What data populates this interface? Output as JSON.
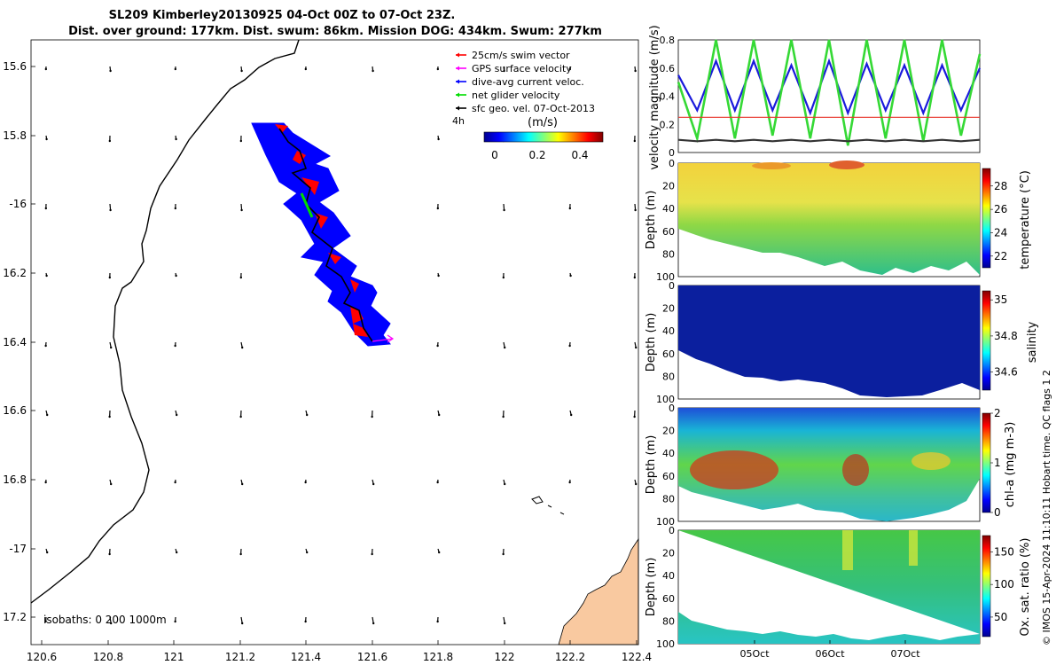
{
  "title": {
    "line1": "SL209 Kimberley20130925 04-Oct 00Z to 07-Oct 23Z.",
    "line2": "Dist. over ground: 177km. Dist. swum: 86km. Mission DOG: 434km. Swum: 277km"
  },
  "map": {
    "lat_ticks": [
      "15.6",
      "15.8",
      "-16",
      "16.2",
      "16.4",
      "16.6",
      "16.8",
      "-17",
      "17.2"
    ],
    "lon_ticks": [
      "120.6",
      "120.8",
      "121",
      "121.2",
      "121.4",
      "121.6",
      "121.8",
      "122",
      "122.2",
      "122.4"
    ],
    "legend": [
      "25cm/s swim vector",
      "GPS surface velocity",
      "dive-avg current veloc.",
      "net glider velocity",
      "sfc geo. vel. 07-Oct-2013"
    ],
    "legend_colors": [
      "#ff0000",
      "#ff00ff",
      "#0000ff",
      "#00dd00",
      "#000000"
    ],
    "interval_label": "4h",
    "colorbar_label": "(m/s)",
    "colorbar_ticks": [
      "0",
      "0.2",
      "0.4"
    ],
    "isobaths_label": "isobaths: 0   200  1000m",
    "land_color": "#f9c9a0",
    "track_color": "#0000ff"
  },
  "panels": {
    "velocity_ylabel": "velocity magnitude (m/s)",
    "velocity_yticks": [
      "0",
      "0.2",
      "0.4",
      "0.6",
      "0.8"
    ],
    "depth_ylabel": "Depth (m)",
    "depth_ticks": [
      "0",
      "20",
      "40",
      "60",
      "80",
      "100"
    ],
    "temperature_label": "temperature (°C)",
    "temperature_ticks": [
      "22",
      "24",
      "26",
      "28"
    ],
    "salinity_label": "salinity",
    "salinity_ticks": [
      "34.6",
      "34.8",
      "35"
    ],
    "chla_label": "chl-a (mg m-3)",
    "chla_ticks": [
      "0",
      "1",
      "2"
    ],
    "oxygen_label": "Ox. sat. ratio (%)",
    "oxygen_ticks": [
      "50",
      "100",
      "150"
    ],
    "date_ticks": [
      "05Oct",
      "06Oct",
      "07Oct"
    ],
    "footer": "© IMOS 15-Apr-2024 11:10:11 Hobart time. QC flags 1  2"
  },
  "chart_data": [
    {
      "type": "scatter",
      "title": "SL209 Kimberley20130925 04-Oct 00Z to 07-Oct 23Z.",
      "xlabel": "",
      "ylabel": "",
      "xlim": [
        120.55,
        122.4
      ],
      "ylim": [
        -17.25,
        -15.55
      ],
      "description_of_marks": "map of glider track, vectors and coastline"
    },
    {
      "type": "line",
      "ylabel": "velocity magnitude (m/s)",
      "ylim": [
        0,
        0.8
      ],
      "x_days": [
        0,
        0.25,
        0.5,
        0.75,
        1.0,
        1.25,
        1.5,
        1.75,
        2.0,
        2.25,
        2.5,
        2.75,
        3.0,
        3.25,
        3.5,
        3.75,
        4.0
      ],
      "series": [
        {
          "values": [
            0.55,
            0.3,
            0.65,
            0.3,
            0.65,
            0.3,
            0.62,
            0.28,
            0.65,
            0.28,
            0.63,
            0.3,
            0.62,
            0.28,
            0.62,
            0.3,
            0.6
          ]
        },
        {
          "values": [
            0.5,
            0.1,
            0.8,
            0.1,
            0.8,
            0.12,
            0.8,
            0.1,
            0.8,
            0.05,
            0.8,
            0.1,
            0.8,
            0.08,
            0.8,
            0.12,
            0.7
          ]
        },
        {
          "values": [
            0.25,
            0.25,
            0.25,
            0.25,
            0.25,
            0.25,
            0.25,
            0.25,
            0.25,
            0.25,
            0.25,
            0.25,
            0.25,
            0.25,
            0.25,
            0.25,
            0.25
          ]
        },
        {
          "values": [
            0.09,
            0.08,
            0.09,
            0.08,
            0.09,
            0.08,
            0.09,
            0.08,
            0.09,
            0.08,
            0.09,
            0.08,
            0.09,
            0.08,
            0.09,
            0.08,
            0.09
          ]
        }
      ],
      "x_tick_labels": [
        "05Oct",
        "06Oct",
        "07Oct"
      ]
    },
    {
      "type": "heatmap",
      "ylabel": "Depth (m)",
      "ylim": [
        0,
        100
      ],
      "colorbar": "temperature (°C)",
      "clim": [
        21,
        29.5
      ]
    },
    {
      "type": "heatmap",
      "ylabel": "Depth (m)",
      "ylim": [
        0,
        100
      ],
      "colorbar": "salinity",
      "clim": [
        34.5,
        35.05
      ]
    },
    {
      "type": "heatmap",
      "ylabel": "Depth (m)",
      "ylim": [
        0,
        100
      ],
      "colorbar": "chl-a (mg m-3)",
      "clim": [
        0,
        2
      ]
    },
    {
      "type": "heatmap",
      "ylabel": "Depth (m)",
      "ylim": [
        0,
        100
      ],
      "colorbar": "Ox. sat. ratio (%)",
      "clim": [
        20,
        175
      ]
    }
  ]
}
